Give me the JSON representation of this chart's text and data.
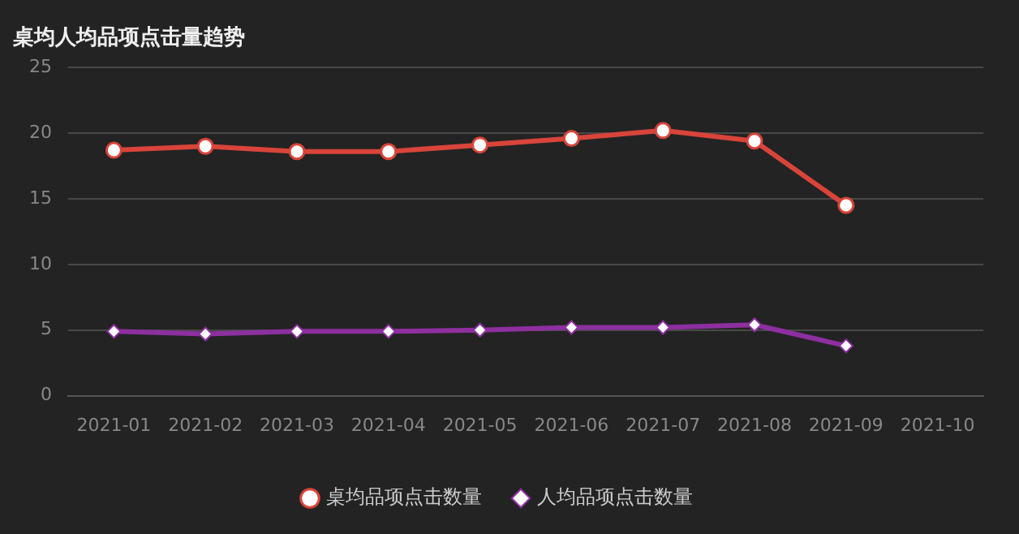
{
  "chart_data": {
    "type": "line",
    "title": "桌均人均品项点击量趋势",
    "categories": [
      "2021-01",
      "2021-02",
      "2021-03",
      "2021-04",
      "2021-05",
      "2021-06",
      "2021-07",
      "2021-08",
      "2021-09",
      "2021-10"
    ],
    "series": [
      {
        "name": "桌均品项点击数量",
        "color": "#d9443a",
        "marker": "circle",
        "values": [
          18.7,
          19.0,
          18.6,
          18.6,
          19.1,
          19.6,
          20.2,
          19.4,
          14.5,
          null
        ]
      },
      {
        "name": "人均品项点击数量",
        "color": "#8e2fa0",
        "marker": "diamond",
        "values": [
          4.9,
          4.7,
          4.9,
          4.9,
          5.0,
          5.2,
          5.2,
          5.4,
          3.8,
          null
        ]
      }
    ],
    "ylim": [
      0,
      25
    ],
    "yticks": [
      0,
      5,
      10,
      15,
      20,
      25
    ],
    "grid": "y",
    "legend": "bottom",
    "line_style": "solid"
  }
}
